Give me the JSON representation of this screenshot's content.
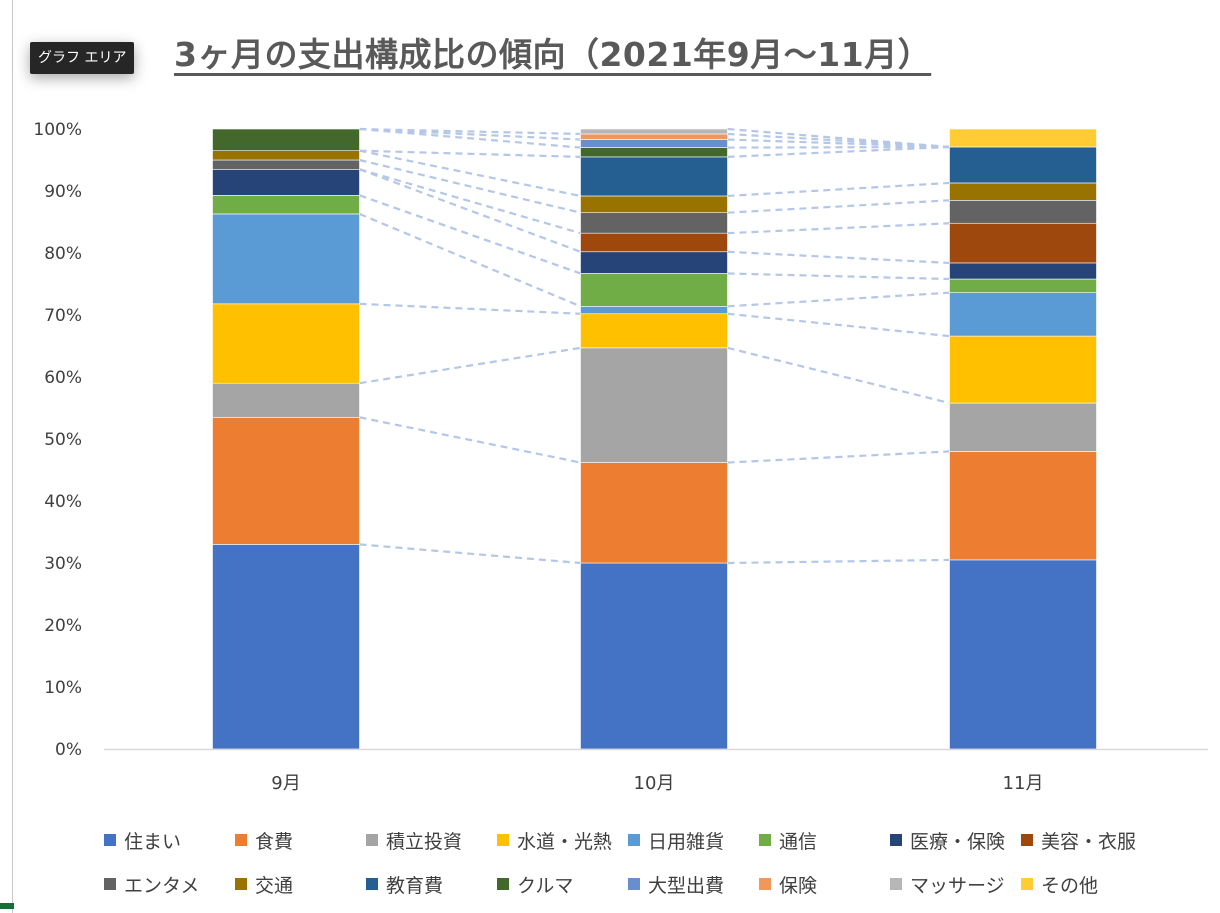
{
  "badge": {
    "label": "グラフ エリア"
  },
  "chart_data": {
    "type": "bar",
    "stacked": true,
    "percent_stacked": true,
    "title": "3ヶ月の支出構成比の傾向（2021年9月〜11月）",
    "categories": [
      "9月",
      "10月",
      "11月"
    ],
    "y_ticks": [
      "0%",
      "10%",
      "20%",
      "30%",
      "40%",
      "50%",
      "60%",
      "70%",
      "80%",
      "90%",
      "100%"
    ],
    "ylim": [
      0,
      100
    ],
    "grid": false,
    "series_lines": true,
    "legend_position": "bottom",
    "series": [
      {
        "name": "住まい",
        "color": "#4472C4",
        "values": [
          33.0,
          30.0,
          30.5
        ]
      },
      {
        "name": "食費",
        "color": "#ED7D31",
        "values": [
          20.5,
          16.2,
          17.5
        ]
      },
      {
        "name": "積立投資",
        "color": "#A5A5A5",
        "values": [
          5.5,
          18.5,
          7.8
        ]
      },
      {
        "name": "水道・光熱",
        "color": "#FFC000",
        "values": [
          12.8,
          5.5,
          10.8
        ]
      },
      {
        "name": "日用雑貨",
        "color": "#5B9BD5",
        "values": [
          14.5,
          1.2,
          7.0
        ]
      },
      {
        "name": "通信",
        "color": "#70AD47",
        "values": [
          3.0,
          5.3,
          2.2
        ]
      },
      {
        "name": "医療・保険",
        "color": "#264478",
        "values": [
          4.2,
          3.5,
          2.6
        ]
      },
      {
        "name": "美容・衣服",
        "color": "#9E480E",
        "values": [
          0.0,
          3.0,
          6.4
        ]
      },
      {
        "name": "エンタメ",
        "color": "#636363",
        "values": [
          1.5,
          3.3,
          3.7
        ]
      },
      {
        "name": "交通",
        "color": "#997300",
        "values": [
          1.5,
          2.7,
          2.8
        ]
      },
      {
        "name": "教育費",
        "color": "#255E91",
        "values": [
          0.0,
          6.3,
          5.8
        ]
      },
      {
        "name": "クルマ",
        "color": "#43682B",
        "values": [
          3.5,
          1.5,
          0.0
        ]
      },
      {
        "name": "大型出費",
        "color": "#698ED0",
        "values": [
          0.0,
          1.3,
          0.0
        ]
      },
      {
        "name": "保険",
        "color": "#F1975A",
        "values": [
          0.0,
          0.9,
          0.0
        ]
      },
      {
        "name": "マッサージ",
        "color": "#B7B7B7",
        "values": [
          0.0,
          0.8,
          0.0
        ]
      },
      {
        "name": "その他",
        "color": "#FFCD33",
        "values": [
          0.0,
          0.0,
          2.9
        ]
      }
    ]
  }
}
